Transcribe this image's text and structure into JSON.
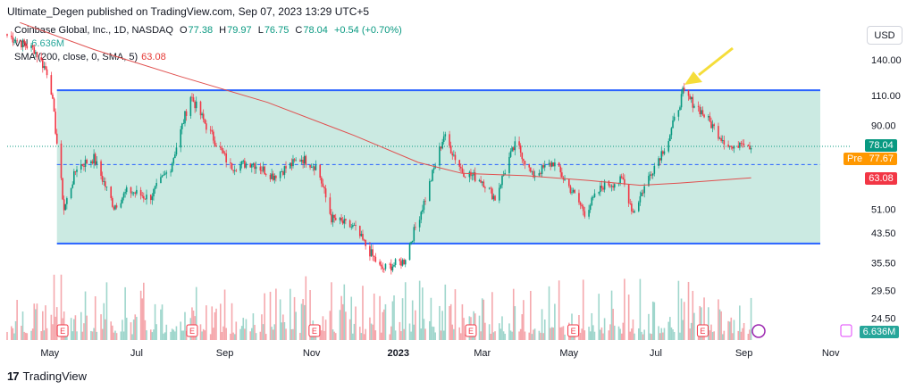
{
  "header": {
    "text": "Ultimate_Degen published on TradingView.com, Sep 07, 2023 13:29 UTC+5"
  },
  "legend": {
    "symbol": "Coinbase Global, Inc., 1D, NASDAQ",
    "o_label": "O",
    "o_value": "77.38",
    "h_label": "H",
    "h_value": "79.97",
    "l_label": "L",
    "l_value": "76.75",
    "c_label": "C",
    "c_value": "78.04",
    "change": "+0.54 (+0.70%)",
    "vol_label": "Vol",
    "vol_value": "6.636M",
    "sma_label": "SMA (200, close, 0, SMA, 5)",
    "sma_value": "63.08"
  },
  "currency": "USD",
  "footer": {
    "brand": "TradingView",
    "logo_mark": "17"
  },
  "price_tags": {
    "last": {
      "label": "78.04",
      "color": "#089981"
    },
    "pre": {
      "prefix": "Pre",
      "label": "77.67",
      "color": "#ff9800"
    },
    "sma": {
      "label": "63.08",
      "color": "#f23645"
    },
    "volume": {
      "label": "6.636M",
      "color": "#26a69a"
    }
  },
  "colors": {
    "up": "#089981",
    "down": "#f23645",
    "sma": "#e0504f",
    "channel_fill": "#b9e3d8",
    "channel_line": "#2962ff",
    "mid_line": "#2962ff",
    "arrow": "#f5dd3a",
    "grid": "#f0f3fa"
  },
  "chart_data": {
    "type": "candlestick",
    "scale": "log",
    "y_ticks": [
      "140.00",
      "110.00",
      "90.00",
      "78.04",
      "63.08",
      "51.00",
      "43.50",
      "35.50",
      "29.50",
      "24.50"
    ],
    "x_ticks": [
      "May",
      "Jul",
      "Sep",
      "Nov",
      "2023",
      "Mar",
      "May",
      "Jul",
      "Sep",
      "Nov"
    ],
    "channel": {
      "top": 114,
      "bottom": 40.5,
      "mid": 69
    },
    "sma_series": [
      {
        "x": "2022-04-10",
        "y": 180
      },
      {
        "x": "2022-06-01",
        "y": 150
      },
      {
        "x": "2022-08-01",
        "y": 125
      },
      {
        "x": "2022-10-01",
        "y": 105
      },
      {
        "x": "2022-12-01",
        "y": 84
      },
      {
        "x": "2023-01-15",
        "y": 70
      },
      {
        "x": "2023-02-15",
        "y": 65
      },
      {
        "x": "2023-04-01",
        "y": 64
      },
      {
        "x": "2023-05-15",
        "y": 62
      },
      {
        "x": "2023-06-20",
        "y": 60
      },
      {
        "x": "2023-07-20",
        "y": 61
      },
      {
        "x": "2023-09-06",
        "y": 63.08
      }
    ],
    "price_path": [
      {
        "x": "2022-04-01",
        "y": 165
      },
      {
        "x": "2022-04-20",
        "y": 150
      },
      {
        "x": "2022-05-01",
        "y": 125
      },
      {
        "x": "2022-05-11",
        "y": 51
      },
      {
        "x": "2022-05-20",
        "y": 68
      },
      {
        "x": "2022-06-01",
        "y": 72
      },
      {
        "x": "2022-06-15",
        "y": 52
      },
      {
        "x": "2022-06-25",
        "y": 58
      },
      {
        "x": "2022-07-10",
        "y": 55
      },
      {
        "x": "2022-07-25",
        "y": 68
      },
      {
        "x": "2022-08-08",
        "y": 110
      },
      {
        "x": "2022-08-20",
        "y": 88
      },
      {
        "x": "2022-09-05",
        "y": 68
      },
      {
        "x": "2022-09-20",
        "y": 70
      },
      {
        "x": "2022-10-05",
        "y": 64
      },
      {
        "x": "2022-10-25",
        "y": 72
      },
      {
        "x": "2022-11-05",
        "y": 68
      },
      {
        "x": "2022-11-15",
        "y": 48
      },
      {
        "x": "2022-12-01",
        "y": 45
      },
      {
        "x": "2022-12-20",
        "y": 34
      },
      {
        "x": "2023-01-05",
        "y": 36
      },
      {
        "x": "2023-01-20",
        "y": 55
      },
      {
        "x": "2023-02-02",
        "y": 84
      },
      {
        "x": "2023-02-15",
        "y": 66
      },
      {
        "x": "2023-03-01",
        "y": 62
      },
      {
        "x": "2023-03-10",
        "y": 55
      },
      {
        "x": "2023-03-20",
        "y": 72
      },
      {
        "x": "2023-03-25",
        "y": 80
      },
      {
        "x": "2023-04-05",
        "y": 64
      },
      {
        "x": "2023-04-20",
        "y": 70
      },
      {
        "x": "2023-05-05",
        "y": 56
      },
      {
        "x": "2023-05-12",
        "y": 50
      },
      {
        "x": "2023-05-25",
        "y": 60
      },
      {
        "x": "2023-06-08",
        "y": 62
      },
      {
        "x": "2023-06-15",
        "y": 50
      },
      {
        "x": "2023-06-28",
        "y": 66
      },
      {
        "x": "2023-07-10",
        "y": 82
      },
      {
        "x": "2023-07-20",
        "y": 112
      },
      {
        "x": "2023-08-01",
        "y": 100
      },
      {
        "x": "2023-08-15",
        "y": 84
      },
      {
        "x": "2023-08-25",
        "y": 76
      },
      {
        "x": "2023-08-30",
        "y": 82
      },
      {
        "x": "2023-09-06",
        "y": 78.04
      }
    ]
  }
}
